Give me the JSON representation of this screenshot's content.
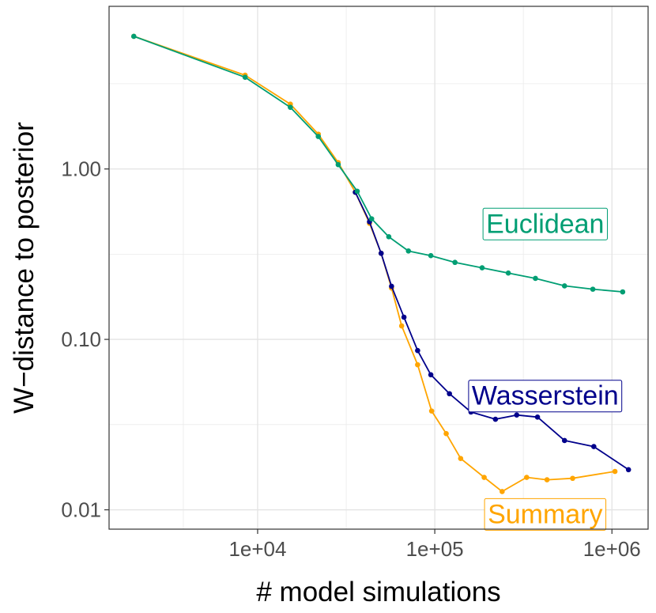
{
  "chart_data": {
    "type": "line",
    "title": "",
    "xlabel": "# model simulations",
    "ylabel": "W−distance to posterior",
    "xscale": "log10",
    "yscale": "log10",
    "xlim": [
      1450,
      1600000
    ],
    "ylim": [
      0.0077,
      9.0
    ],
    "x_ticks": [
      {
        "value": 10000,
        "label": "1e+04"
      },
      {
        "value": 100000,
        "label": "1e+05"
      },
      {
        "value": 1000000,
        "label": "1e+06"
      }
    ],
    "y_ticks": [
      {
        "value": 0.01,
        "label": "0.01"
      },
      {
        "value": 0.1,
        "label": "0.10"
      },
      {
        "value": 1.0,
        "label": "1.00"
      }
    ],
    "grid": true,
    "series": [
      {
        "name": "Summary",
        "color": "#FFA500",
        "points": [
          [
            2000,
            6.0
          ],
          [
            8500,
            3.55
          ],
          [
            15300,
            2.4
          ],
          [
            22000,
            1.6
          ],
          [
            28500,
            1.09
          ],
          [
            35600,
            0.73
          ],
          [
            42800,
            0.48
          ],
          [
            49800,
            0.32
          ],
          [
            57000,
            0.2
          ],
          [
            65000,
            0.12
          ],
          [
            80000,
            0.071
          ],
          [
            96000,
            0.038
          ],
          [
            116000,
            0.028
          ],
          [
            140000,
            0.02
          ],
          [
            190000,
            0.0155
          ],
          [
            240000,
            0.0128
          ],
          [
            330000,
            0.0155
          ],
          [
            430000,
            0.015
          ],
          [
            600000,
            0.0153
          ],
          [
            1040000,
            0.0168
          ]
        ]
      },
      {
        "name": "Wasserstein",
        "color": "#00008B",
        "points": [
          [
            35600,
            0.73
          ],
          [
            42800,
            0.49
          ],
          [
            49800,
            0.32
          ],
          [
            57000,
            0.205
          ],
          [
            67000,
            0.135
          ],
          [
            80000,
            0.086
          ],
          [
            95000,
            0.062
          ],
          [
            121000,
            0.048
          ],
          [
            160000,
            0.0375
          ],
          [
            220000,
            0.034
          ],
          [
            290000,
            0.036
          ],
          [
            380000,
            0.035
          ],
          [
            540000,
            0.0255
          ],
          [
            790000,
            0.0235
          ],
          [
            1240000,
            0.0172
          ]
        ]
      },
      {
        "name": "Euclidean",
        "color": "#009E73",
        "points": [
          [
            2000,
            6.0
          ],
          [
            8500,
            3.45
          ],
          [
            15300,
            2.3
          ],
          [
            22000,
            1.55
          ],
          [
            28500,
            1.06
          ],
          [
            36500,
            0.74
          ],
          [
            44000,
            0.51
          ],
          [
            55000,
            0.4
          ],
          [
            71000,
            0.33
          ],
          [
            95000,
            0.31
          ],
          [
            130000,
            0.283
          ],
          [
            185000,
            0.263
          ],
          [
            260000,
            0.245
          ],
          [
            370000,
            0.228
          ],
          [
            540000,
            0.206
          ],
          [
            780000,
            0.197
          ],
          [
            1150000,
            0.19
          ]
        ]
      }
    ],
    "labels": [
      {
        "text": "Euclidean",
        "series": "Euclidean",
        "x": 420000,
        "y": 0.48,
        "color": "#009E73"
      },
      {
        "text": "Wasserstein",
        "series": "Wasserstein",
        "x": 420000,
        "y": 0.047,
        "color": "#00008B"
      },
      {
        "text": "Summary",
        "series": "Summary",
        "x": 420000,
        "y": 0.0095,
        "color": "#FFA500"
      }
    ]
  }
}
